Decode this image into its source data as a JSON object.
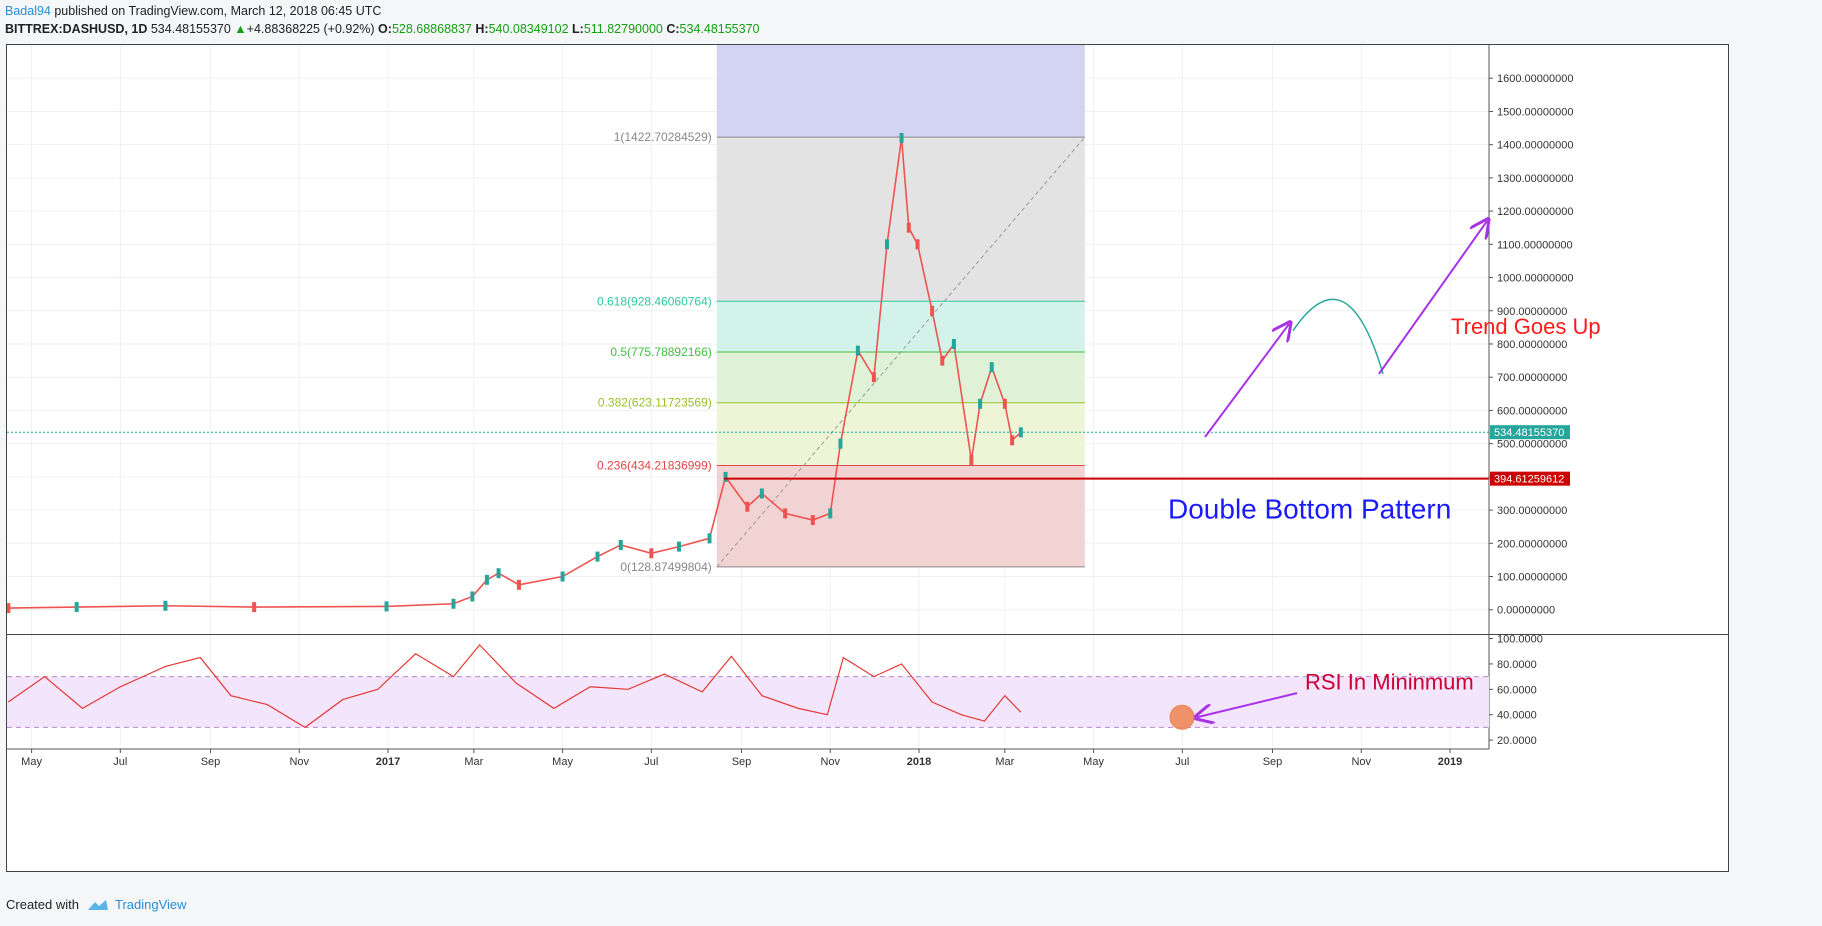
{
  "header": {
    "author": "Badal94",
    "published": " published on TradingView.com, March 12, 2018 06:45 UTC",
    "symbol": "BITTREX:DASHUSD, 1D",
    "last": "534.48155370",
    "change": "+4.88368225 (+0.92%)",
    "o_label": "O:",
    "o": "528.68868837",
    "h_label": "H:",
    "h": "540.08349102",
    "l_label": "L:",
    "l": "511.82790000",
    "c_label": "C:",
    "c": "534.48155370"
  },
  "footer": {
    "created": "Created with",
    "brand": "TradingView"
  },
  "colors": {
    "up": "#26a69a",
    "down": "#ef5350",
    "rsi": "#e53935",
    "annotation_red": "#ff1a1a",
    "annotation_blue": "#1a1aff",
    "arrow": "#a633e8",
    "hline": "#cc0000"
  },
  "chart_data": {
    "type": "line",
    "x_ticks": [
      "May",
      "Jul",
      "Sep",
      "Nov",
      "2017",
      "Mar",
      "May",
      "Jul",
      "Sep",
      "Nov",
      "2018",
      "Mar",
      "May",
      "Jul",
      "Sep",
      "Nov",
      "2019"
    ],
    "bold_ticks": [
      "2017",
      "2018",
      "2019"
    ],
    "price_axis": {
      "ylim": [
        -70,
        1700
      ],
      "ticks": [
        "1600.00000000",
        "1500.00000000",
        "1400.00000000",
        "1300.00000000",
        "1200.00000000",
        "1100.00000000",
        "1000.00000000",
        "900.00000000",
        "800.00000000",
        "700.00000000",
        "600.00000000",
        "500.00000000",
        "400.00000000",
        "300.00000000",
        "200.00000000",
        "100.00000000",
        "0.00000000"
      ],
      "tick_values": [
        1600,
        1500,
        1400,
        1300,
        1200,
        1100,
        1000,
        900,
        800,
        700,
        600,
        500,
        400,
        300,
        200,
        100,
        0
      ]
    },
    "rsi_axis": {
      "ylim": [
        13,
        102
      ],
      "ticks": [
        "100.0000",
        "80.0000",
        "60.0000",
        "40.0000",
        "20.0000"
      ],
      "tick_values": [
        100,
        80,
        60,
        40,
        20
      ],
      "band": [
        30,
        70
      ]
    },
    "price_series": {
      "name": "",
      "x": [
        "2016-04-15",
        "2016-06-01",
        "2016-08-01",
        "2016-10-01",
        "2016-12-31",
        "2017-02-15",
        "2017-02-28",
        "2017-03-10",
        "2017-03-18",
        "2017-04-01",
        "2017-05-01",
        "2017-05-25",
        "2017-06-10",
        "2017-07-01",
        "2017-07-20",
        "2017-08-10",
        "2017-08-21",
        "2017-09-05",
        "2017-09-15",
        "2017-10-01",
        "2017-10-20",
        "2017-11-01",
        "2017-11-08",
        "2017-11-20",
        "2017-12-01",
        "2017-12-10",
        "2017-12-20",
        "2017-12-25",
        "2017-12-31",
        "2018-01-10",
        "2018-01-17",
        "2018-01-25",
        "2018-02-06",
        "2018-02-12",
        "2018-02-20",
        "2018-03-01",
        "2018-03-06",
        "2018-03-12"
      ],
      "y": [
        5,
        8,
        12,
        8,
        10,
        18,
        40,
        90,
        110,
        75,
        100,
        160,
        195,
        170,
        190,
        215,
        400,
        310,
        350,
        290,
        270,
        290,
        500,
        780,
        700,
        1100,
        1420,
        1150,
        1100,
        900,
        750,
        800,
        450,
        620,
        730,
        620,
        510,
        534
      ]
    },
    "rsi_series": {
      "name": "",
      "x": [
        "2016-04-15",
        "2016-05-10",
        "2016-06-05",
        "2016-07-01",
        "2016-08-01",
        "2016-08-25",
        "2016-09-15",
        "2016-10-10",
        "2016-11-05",
        "2016-12-01",
        "2016-12-25",
        "2017-01-20",
        "2017-02-15",
        "2017-03-05",
        "2017-03-30",
        "2017-04-25",
        "2017-05-20",
        "2017-06-15",
        "2017-07-10",
        "2017-08-05",
        "2017-08-25",
        "2017-09-15",
        "2017-10-10",
        "2017-10-30",
        "2017-11-10",
        "2017-12-01",
        "2017-12-20",
        "2018-01-10",
        "2018-01-30",
        "2018-02-15",
        "2018-03-01",
        "2018-03-12"
      ],
      "y": [
        50,
        70,
        45,
        62,
        78,
        85,
        55,
        48,
        30,
        52,
        60,
        88,
        70,
        95,
        65,
        45,
        62,
        60,
        72,
        58,
        86,
        55,
        45,
        40,
        85,
        70,
        80,
        50,
        40,
        35,
        55,
        42
      ]
    },
    "fib_levels": [
      {
        "label": "1(1422.70284529)",
        "value": 1422.70284529,
        "color": "#888888"
      },
      {
        "label": "0.618(928.46060764)",
        "value": 928.46060764,
        "color": "#2ec99a"
      },
      {
        "label": "0.5(775.78892166)",
        "value": 775.78892166,
        "color": "#3fbf3f"
      },
      {
        "label": "0.382(623.11723569)",
        "value": 623.11723569,
        "color": "#9abf2a"
      },
      {
        "label": "0.236(434.21836999)",
        "value": 434.21836999,
        "color": "#e04646"
      },
      {
        "label": "0(128.87499804)",
        "value": 128.87499804,
        "color": "#888888"
      }
    ],
    "fib_zone": {
      "x_start": "2017-08-15",
      "x_end": "2018-04-25"
    },
    "current_price": {
      "label": "534.48155370",
      "value": 534.4815537
    },
    "support_line": {
      "label": "394.61259612",
      "value": 394.61259612
    },
    "annotations": [
      {
        "text": "Trend Goes Up",
        "color": "#ff1a1a"
      },
      {
        "text": "Double Bottom Pattern",
        "color": "#1a1aff"
      },
      {
        "text": "RSI  In Mininmum",
        "color": "#cc0033"
      }
    ]
  }
}
